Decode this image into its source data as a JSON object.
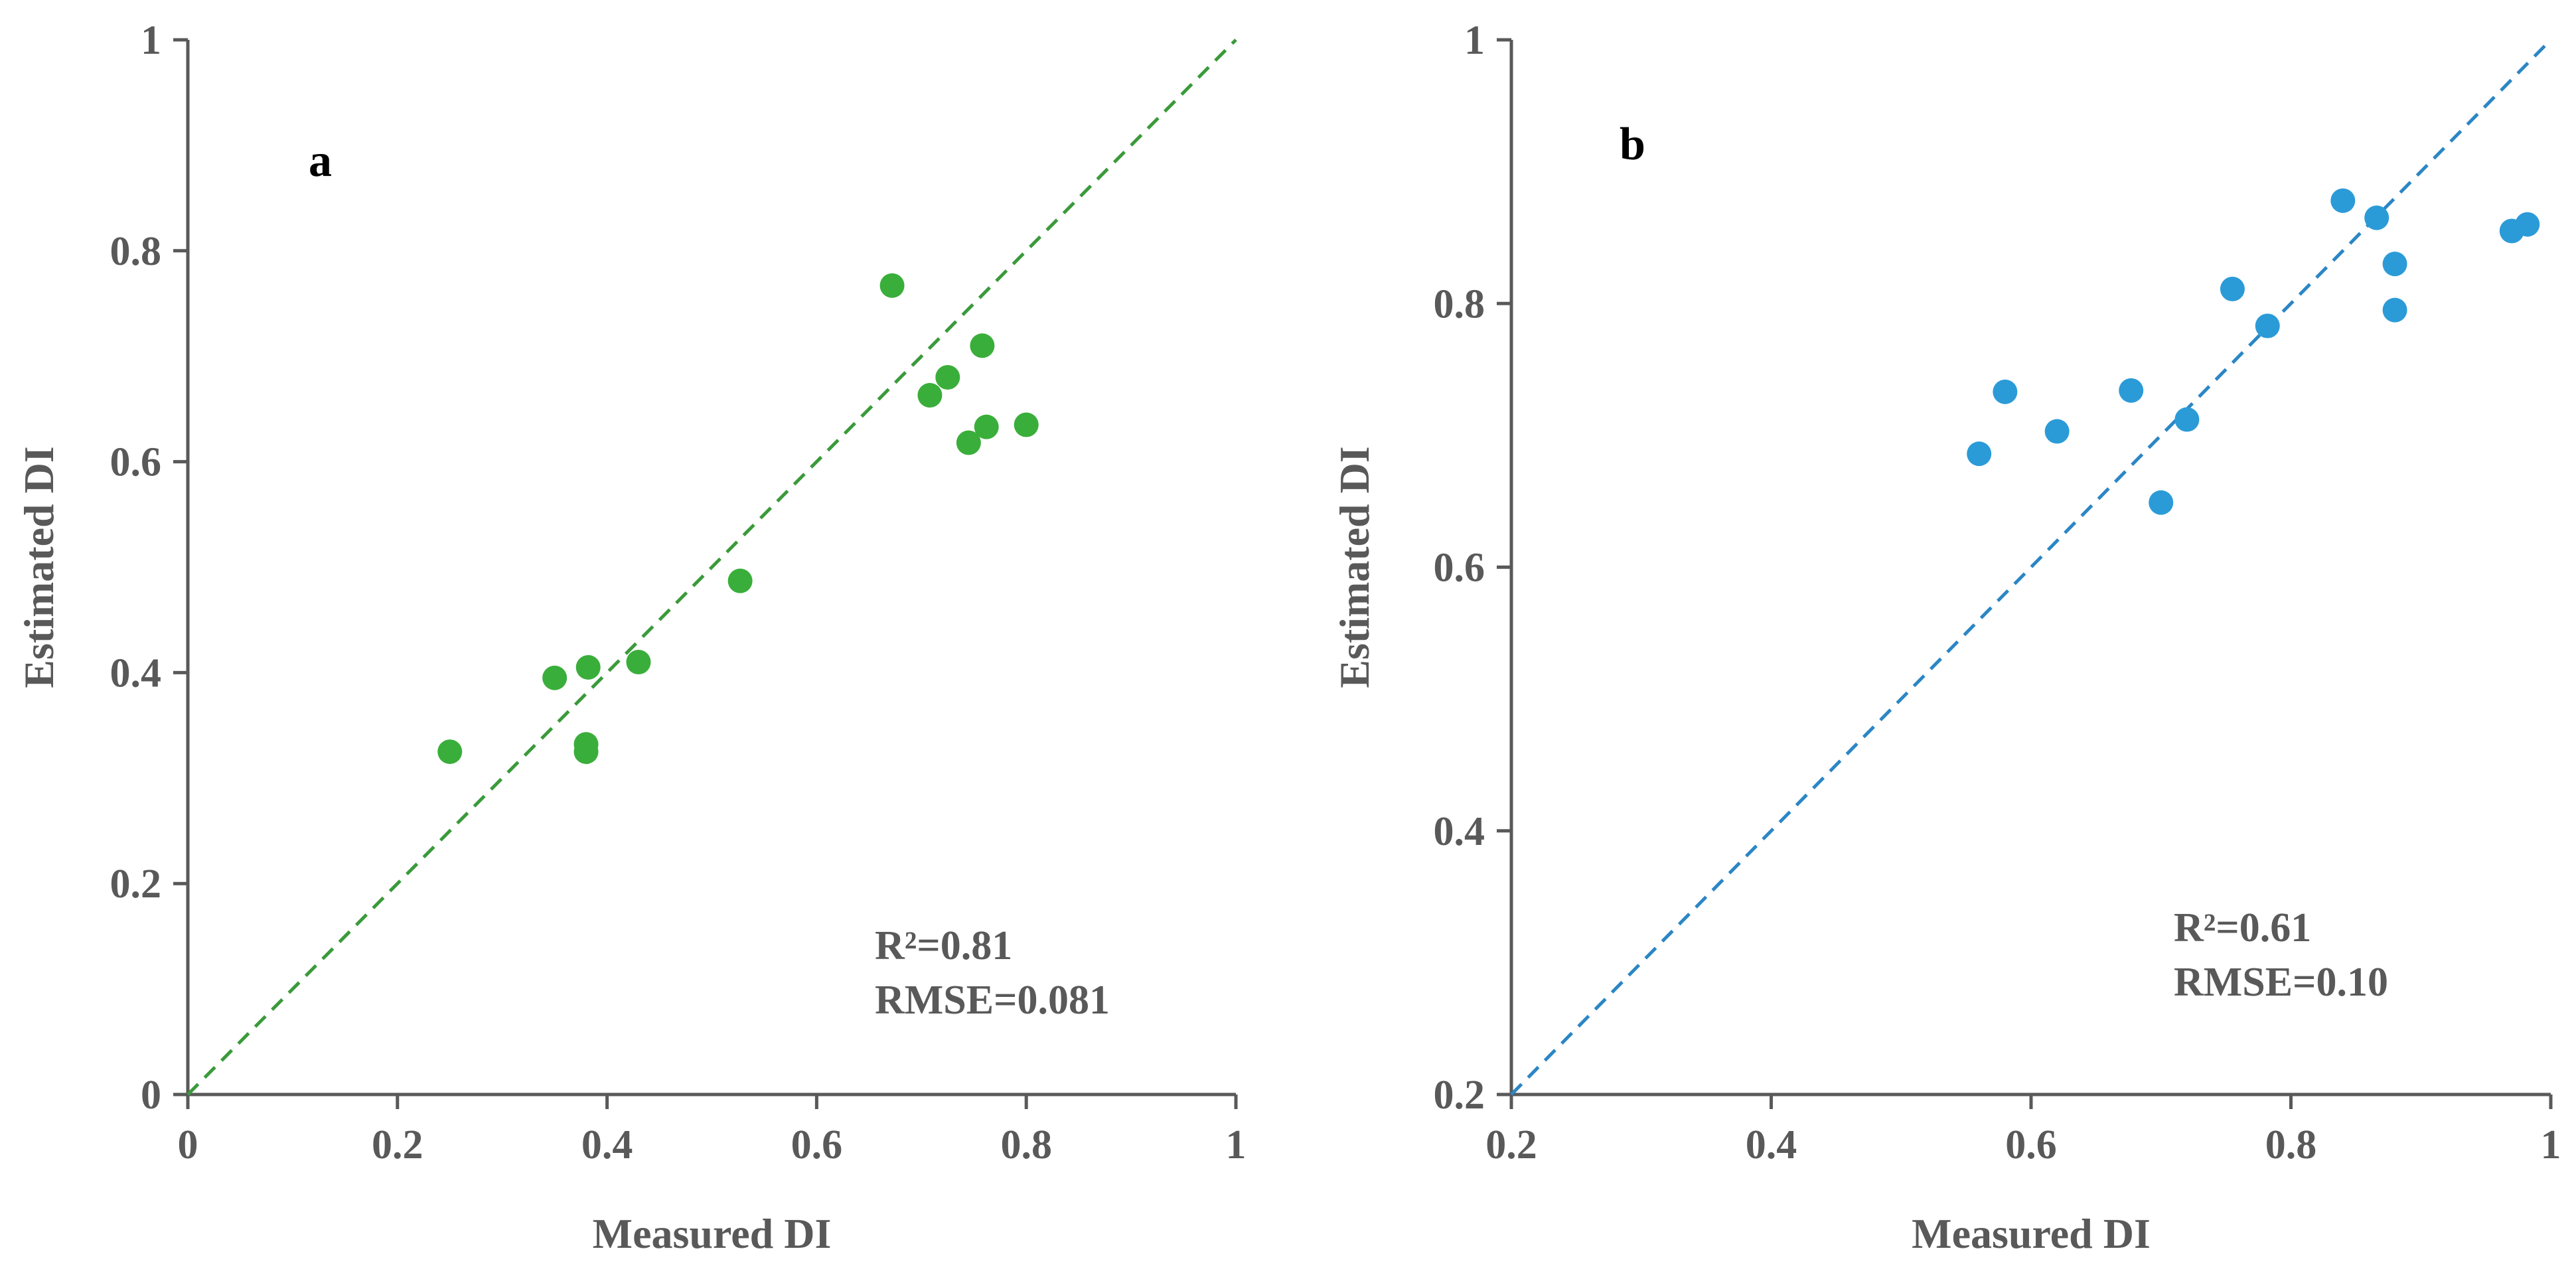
{
  "chart_data": [
    {
      "type": "scatter",
      "panel_label": "a",
      "xlabel": "Measured DI",
      "ylabel": "Estimated DI",
      "xlim": [
        0,
        1
      ],
      "ylim": [
        0,
        1
      ],
      "xticks": [
        0,
        0.2,
        0.4,
        0.6,
        0.8,
        1
      ],
      "yticks": [
        0,
        0.2,
        0.4,
        0.6,
        0.8,
        1
      ],
      "xtick_labels": [
        "0",
        "0.2",
        "0.4",
        "0.6",
        "0.8",
        "1"
      ],
      "ytick_labels": [
        "0",
        "0.2",
        "0.4",
        "0.6",
        "0.8",
        "1"
      ],
      "grid": false,
      "point_color": "#3aae3a",
      "line_color": "#3a9a3a",
      "reference_line": "1:1 dashed",
      "annotations": [
        "R²=0.81",
        "RMSE=0.081"
      ],
      "points": [
        {
          "x": 0.25,
          "y": 0.325
        },
        {
          "x": 0.35,
          "y": 0.395
        },
        {
          "x": 0.382,
          "y": 0.405
        },
        {
          "x": 0.38,
          "y": 0.332
        },
        {
          "x": 0.38,
          "y": 0.325
        },
        {
          "x": 0.43,
          "y": 0.41
        },
        {
          "x": 0.527,
          "y": 0.487
        },
        {
          "x": 0.672,
          "y": 0.767
        },
        {
          "x": 0.708,
          "y": 0.663
        },
        {
          "x": 0.725,
          "y": 0.68
        },
        {
          "x": 0.745,
          "y": 0.618
        },
        {
          "x": 0.758,
          "y": 0.71
        },
        {
          "x": 0.762,
          "y": 0.633
        },
        {
          "x": 0.8,
          "y": 0.635
        }
      ]
    },
    {
      "type": "scatter",
      "panel_label": "b",
      "xlabel": "Measured DI",
      "ylabel": "Estimated DI",
      "xlim": [
        0.2,
        1
      ],
      "ylim": [
        0.2,
        1
      ],
      "xticks": [
        0.2,
        0.4,
        0.6,
        0.8,
        1
      ],
      "yticks": [
        0.2,
        0.4,
        0.6,
        0.8,
        1
      ],
      "xtick_labels": [
        "0.2",
        "0.4",
        "0.6",
        "0.8",
        "1"
      ],
      "ytick_labels": [
        "0.2",
        "0.4",
        "0.6",
        "0.8",
        "1"
      ],
      "grid": false,
      "point_color": "#2b9bd8",
      "line_color": "#2b86c5",
      "reference_line": "1:1 dashed",
      "annotations": [
        "R²=0.61",
        "RMSE=0.10"
      ],
      "points": [
        {
          "x": 0.56,
          "y": 0.686
        },
        {
          "x": 0.58,
          "y": 0.733
        },
        {
          "x": 0.62,
          "y": 0.703
        },
        {
          "x": 0.677,
          "y": 0.734
        },
        {
          "x": 0.7,
          "y": 0.649
        },
        {
          "x": 0.72,
          "y": 0.712
        },
        {
          "x": 0.755,
          "y": 0.811
        },
        {
          "x": 0.782,
          "y": 0.783
        },
        {
          "x": 0.84,
          "y": 0.878
        },
        {
          "x": 0.866,
          "y": 0.865
        },
        {
          "x": 0.88,
          "y": 0.83
        },
        {
          "x": 0.88,
          "y": 0.795
        },
        {
          "x": 0.97,
          "y": 0.855
        },
        {
          "x": 0.982,
          "y": 0.86
        }
      ]
    }
  ]
}
